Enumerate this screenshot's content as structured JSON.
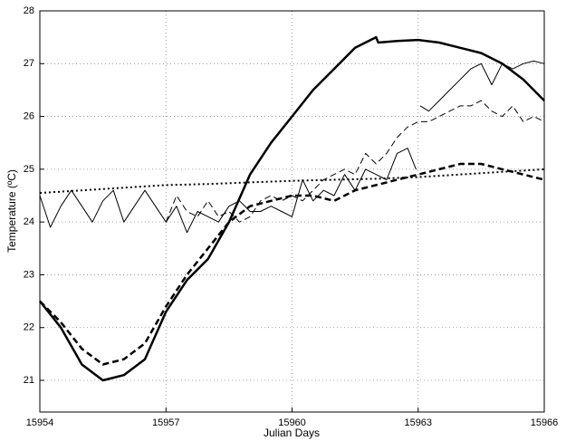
{
  "chart_data": {
    "type": "line",
    "xlabel": "Julian Days",
    "ylabel": "Temperature (ºC)",
    "xlim": [
      15954,
      15966
    ],
    "xticks": [
      15954,
      15957,
      15960,
      15963,
      15966
    ],
    "ylim": [
      20.4,
      28
    ],
    "yticks": [
      21,
      22,
      23,
      24,
      25,
      26,
      27,
      28
    ],
    "grid": true,
    "series": [
      {
        "color": "#000000",
        "linestyle": "solid",
        "linewidth": 2.5,
        "x": [
          15954,
          15954.5,
          15955,
          15955.5,
          15956,
          15956.5,
          15957,
          15957.5,
          15958,
          15958.5,
          15959,
          15959.5,
          15960,
          15960.5,
          15961,
          15961.5,
          15962,
          15962.05,
          15962.5,
          15963,
          15963.5,
          15964,
          15964.5,
          15965,
          15965.5,
          15966
        ],
        "values": [
          22.5,
          22.0,
          21.3,
          21.0,
          21.1,
          21.4,
          22.3,
          22.9,
          23.3,
          24.0,
          24.9,
          25.5,
          26.0,
          26.5,
          26.9,
          27.3,
          27.5,
          27.4,
          27.43,
          27.45,
          27.4,
          27.3,
          27.2,
          27.0,
          26.7,
          26.3
        ]
      },
      {
        "color": "#000000",
        "linestyle": "dashed",
        "linewidth": 2.5,
        "x": [
          15954,
          15954.5,
          15955,
          15955.5,
          15956,
          15956.5,
          15957,
          15957.5,
          15958,
          15958.5,
          15959,
          15959.5,
          15960,
          15960.5,
          15961,
          15961.5,
          15962,
          15962.5,
          15963,
          15963.5,
          15964,
          15964.5,
          15965,
          15965.5,
          15966
        ],
        "values": [
          22.5,
          22.1,
          21.6,
          21.3,
          21.4,
          21.7,
          22.4,
          23.0,
          23.5,
          24.0,
          24.3,
          24.4,
          24.5,
          24.5,
          24.4,
          24.6,
          24.7,
          24.8,
          24.9,
          25.0,
          25.1,
          25.1,
          25.0,
          24.9,
          24.8
        ]
      },
      {
        "color": "#000000",
        "linestyle": "dotted",
        "linewidth": 2,
        "x": [
          15954,
          15955,
          15956,
          15957,
          15958,
          15959,
          15960,
          15961,
          15962,
          15963,
          15964,
          15965,
          15966
        ],
        "values": [
          24.55,
          24.6,
          24.65,
          24.7,
          24.72,
          24.75,
          24.78,
          24.8,
          24.82,
          24.85,
          24.9,
          24.95,
          25.0
        ]
      },
      {
        "color": "#000000",
        "linestyle": "solid",
        "linewidth": 1,
        "x": [
          15954,
          15954.25,
          15954.5,
          15954.75,
          15955,
          15955.25,
          15955.5,
          15955.75,
          15956,
          15956.25,
          15956.5,
          15956.75,
          15957,
          15957.25,
          15957.5,
          15957.75,
          15958,
          15958.25,
          15958.5,
          15958.75,
          15959,
          15959.25,
          15959.5,
          15959.75,
          15960,
          15960.25,
          15960.5,
          15960.75,
          15961,
          15961.25,
          15961.5,
          15961.75,
          15962,
          15962.25,
          15962.5,
          15962.75,
          15962.95,
          15963,
          15963.05,
          15963.25,
          15963.5,
          15963.75,
          15964,
          15964.25,
          15964.5,
          15964.75,
          15965,
          15965.25,
          15965.5,
          15965.75,
          15966
        ],
        "values": [
          24.5,
          23.9,
          24.3,
          24.6,
          24.3,
          24.0,
          24.4,
          24.6,
          24.0,
          24.3,
          24.6,
          24.3,
          24.0,
          24.3,
          23.8,
          24.2,
          24.1,
          24.0,
          24.3,
          24.4,
          24.2,
          24.2,
          24.3,
          24.2,
          24.1,
          24.8,
          24.4,
          24.6,
          24.5,
          24.9,
          24.6,
          25.0,
          24.9,
          24.8,
          25.3,
          25.4,
          25.0,
          null,
          26.2,
          26.1,
          26.3,
          26.5,
          26.7,
          26.9,
          27.0,
          26.6,
          27.0,
          26.9,
          27.0,
          27.05,
          27.0
        ]
      },
      {
        "color": "#000000",
        "linestyle": "dashed",
        "linewidth": 1,
        "x": [
          15957,
          15957.25,
          15957.5,
          15957.75,
          15958,
          15958.25,
          15958.5,
          15958.75,
          15959,
          15959.25,
          15959.5,
          15959.75,
          15960,
          15960.25,
          15960.5,
          15960.75,
          15961,
          15961.25,
          15961.5,
          15961.75,
          15962,
          15962.25,
          15962.5,
          15962.75,
          15963,
          15963.25,
          15963.5,
          15963.75,
          15964,
          15964.25,
          15964.5,
          15964.75,
          15965,
          15965.25,
          15965.5,
          15965.75,
          15966
        ],
        "values": [
          24.0,
          24.5,
          24.2,
          24.1,
          24.4,
          24.1,
          24.2,
          24.0,
          24.1,
          24.4,
          24.5,
          24.4,
          24.5,
          24.4,
          24.6,
          24.8,
          24.9,
          25.0,
          24.9,
          25.3,
          25.1,
          25.3,
          25.6,
          25.8,
          25.9,
          25.9,
          26.0,
          26.1,
          26.2,
          26.2,
          26.3,
          26.1,
          26.0,
          26.2,
          25.9,
          26.0,
          25.9
        ]
      }
    ]
  }
}
